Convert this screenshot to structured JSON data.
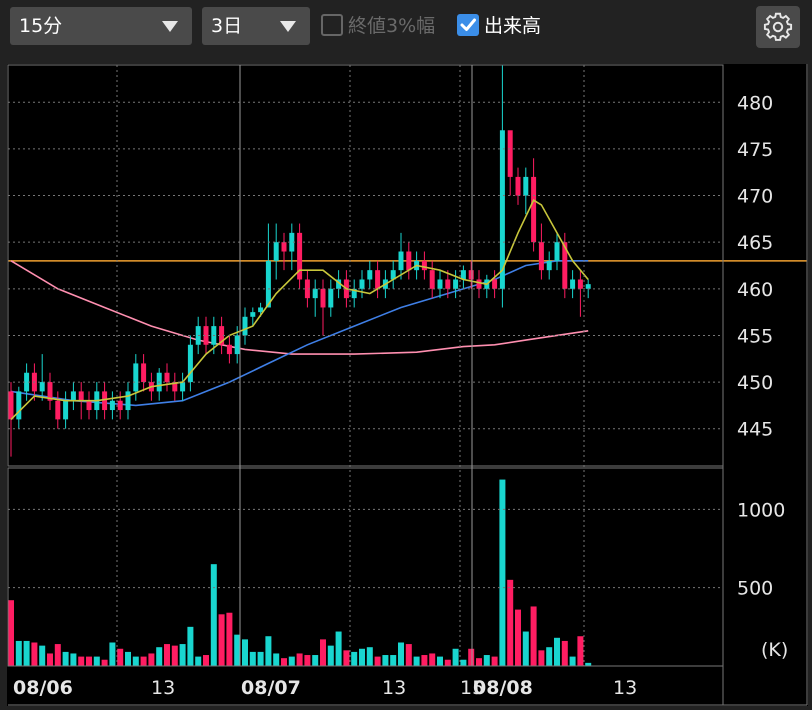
{
  "toolbar": {
    "interval": "15分",
    "range": "3日",
    "option_close_pct": {
      "label": "終値3%幅",
      "checked": false
    },
    "option_volume": {
      "label": "出来高",
      "checked": true
    },
    "settings_icon": "gear-icon"
  },
  "colors": {
    "up": "#19d6cf",
    "down": "#ff1d62",
    "ma_short": "#c8c63b",
    "ma_mid": "#3f7fe6",
    "ma_long": "#ff8fb0",
    "ref_line": "#f0a030",
    "grid": "#777777"
  },
  "chart_data": [
    {
      "type": "candlestick",
      "ylim": [
        441,
        484
      ],
      "yticks": [
        "480",
        "475",
        "470",
        "465",
        "460",
        "455",
        "450",
        "445"
      ],
      "xticks": [
        {
          "label": "08/06",
          "bold": true
        },
        {
          "label": "13",
          "bold": false
        },
        {
          "label": "08/07",
          "bold": true
        },
        {
          "label": "13",
          "bold": false
        },
        {
          "label": "15",
          "bold": false
        },
        {
          "label": "08/08",
          "bold": true
        },
        {
          "label": "13",
          "bold": false
        }
      ],
      "reference_price": 463,
      "candles": [
        [
          449,
          446,
          450,
          442
        ],
        [
          446,
          449,
          449.5,
          445
        ],
        [
          449,
          451,
          452,
          448
        ],
        [
          451,
          449,
          452,
          448
        ],
        [
          449,
          450,
          453,
          448
        ],
        [
          450,
          448,
          451,
          447
        ],
        [
          448,
          446,
          449,
          445
        ],
        [
          446,
          448,
          449,
          445
        ],
        [
          448,
          449,
          450,
          447
        ],
        [
          449,
          448,
          450,
          446
        ],
        [
          448,
          447,
          449,
          446
        ],
        [
          447,
          449,
          450,
          446
        ],
        [
          449,
          447,
          450,
          446
        ],
        [
          447,
          448,
          449,
          446
        ],
        [
          448,
          447,
          449,
          446
        ],
        [
          447,
          449,
          450,
          446
        ],
        [
          449,
          452,
          453,
          448
        ],
        [
          452,
          450,
          453,
          449
        ],
        [
          450,
          449,
          451,
          448
        ],
        [
          449,
          451,
          451.5,
          448
        ],
        [
          451,
          450,
          452,
          449
        ],
        [
          450,
          449,
          451,
          448
        ],
        [
          449,
          450,
          451,
          448
        ],
        [
          450,
          454,
          455,
          449
        ],
        [
          454,
          456,
          457,
          453
        ],
        [
          456,
          454,
          457,
          453
        ],
        [
          454,
          456,
          457,
          453
        ],
        [
          456,
          454,
          457,
          453
        ],
        [
          454,
          453,
          455,
          452
        ],
        [
          453,
          455,
          456,
          452
        ],
        [
          455,
          457,
          458,
          454
        ],
        [
          457,
          457.5,
          458,
          456
        ],
        [
          457.5,
          458,
          458.5,
          457
        ],
        [
          458,
          463,
          467,
          458
        ],
        [
          463,
          465,
          467,
          461
        ],
        [
          465,
          464,
          466,
          462
        ],
        [
          464,
          466,
          467,
          462
        ],
        [
          466,
          461,
          467,
          460
        ],
        [
          461,
          459,
          462,
          458
        ],
        [
          459,
          460,
          461,
          457
        ],
        [
          460,
          458,
          461,
          455
        ],
        [
          458,
          460,
          461,
          457
        ],
        [
          460,
          461,
          462,
          459
        ],
        [
          461,
          459,
          462,
          458
        ],
        [
          459,
          460,
          461,
          458
        ],
        [
          460,
          461,
          462,
          459
        ],
        [
          461,
          462,
          463,
          460
        ],
        [
          462,
          460,
          463,
          459
        ],
        [
          460,
          461,
          462,
          459
        ],
        [
          461,
          462,
          463,
          460
        ],
        [
          462,
          464,
          466,
          461
        ],
        [
          464,
          462,
          465,
          461
        ],
        [
          462,
          463,
          464,
          461
        ],
        [
          463,
          462,
          464,
          461
        ],
        [
          462,
          460,
          463,
          459
        ],
        [
          460,
          461,
          462,
          459
        ],
        [
          461,
          460,
          462,
          459
        ],
        [
          460,
          461,
          462,
          459
        ],
        [
          461,
          462,
          462.5,
          460
        ],
        [
          462,
          461,
          463,
          460
        ],
        [
          461,
          460,
          462,
          459
        ],
        [
          460,
          461,
          461.5,
          459
        ],
        [
          461,
          460,
          462,
          459
        ],
        [
          460,
          477,
          484,
          458
        ],
        [
          477,
          472,
          475,
          470
        ],
        [
          472,
          470,
          473,
          469
        ],
        [
          470,
          472,
          473,
          468
        ],
        [
          472,
          465,
          474,
          464
        ],
        [
          465,
          462,
          467,
          461
        ],
        [
          462,
          463,
          464,
          461
        ],
        [
          463,
          465,
          466,
          462
        ],
        [
          465,
          460,
          466,
          459
        ],
        [
          460,
          461,
          462,
          459
        ],
        [
          461,
          460,
          462,
          457
        ],
        [
          460,
          460.5,
          461,
          459
        ]
      ],
      "ma_short": [
        [
          0,
          446
        ],
        [
          3,
          448.5
        ],
        [
          7,
          448
        ],
        [
          11,
          448
        ],
        [
          15,
          448.5
        ],
        [
          18,
          449.5
        ],
        [
          22,
          450
        ],
        [
          25,
          453
        ],
        [
          28,
          455
        ],
        [
          31,
          456
        ],
        [
          34,
          459.5
        ],
        [
          37,
          462
        ],
        [
          40,
          462
        ],
        [
          43,
          460
        ],
        [
          46,
          459.5
        ],
        [
          49,
          461
        ],
        [
          52,
          462.5
        ],
        [
          55,
          462
        ],
        [
          58,
          461
        ],
        [
          61,
          460.5
        ],
        [
          63,
          462
        ],
        [
          65,
          466
        ],
        [
          67,
          469.5
        ],
        [
          68,
          469
        ],
        [
          70,
          466
        ],
        [
          72,
          463
        ],
        [
          74,
          461
        ]
      ],
      "ma_mid": [
        [
          0,
          449
        ],
        [
          8,
          448
        ],
        [
          16,
          447.5
        ],
        [
          22,
          448
        ],
        [
          28,
          450
        ],
        [
          33,
          452
        ],
        [
          38,
          454
        ],
        [
          44,
          456
        ],
        [
          50,
          458
        ],
        [
          56,
          459.5
        ],
        [
          62,
          461
        ],
        [
          66,
          462.5
        ],
        [
          70,
          463
        ],
        [
          74,
          463
        ]
      ],
      "ma_long": [
        [
          0,
          463
        ],
        [
          6,
          460
        ],
        [
          12,
          458
        ],
        [
          18,
          456
        ],
        [
          24,
          454.5
        ],
        [
          30,
          453.5
        ],
        [
          36,
          453
        ],
        [
          44,
          453
        ],
        [
          52,
          453.2
        ],
        [
          58,
          453.8
        ],
        [
          62,
          454
        ],
        [
          66,
          454.5
        ],
        [
          70,
          455
        ],
        [
          74,
          455.5
        ]
      ]
    },
    {
      "type": "bar",
      "title": "volume",
      "ylim": [
        0,
        1200
      ],
      "yticks": [
        "1000",
        "500"
      ],
      "unit_label": "(K)",
      "values": [
        420,
        160,
        160,
        150,
        130,
        80,
        140,
        90,
        80,
        60,
        60,
        60,
        40,
        150,
        110,
        90,
        60,
        60,
        80,
        120,
        140,
        130,
        140,
        250,
        60,
        70,
        650,
        330,
        340,
        200,
        170,
        90,
        90,
        190,
        80,
        50,
        60,
        80,
        70,
        70,
        170,
        130,
        220,
        100,
        90,
        110,
        120,
        60,
        70,
        70,
        150,
        140,
        60,
        70,
        80,
        60,
        40,
        110,
        40,
        110,
        50,
        70,
        60,
        1190,
        550,
        360,
        220,
        380,
        100,
        120,
        180,
        160,
        60,
        190,
        20
      ]
    }
  ]
}
